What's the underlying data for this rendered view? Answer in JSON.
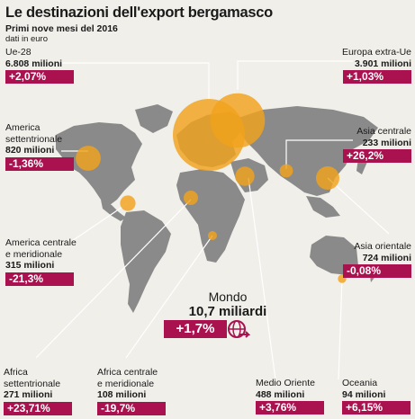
{
  "title": "Le destinazioni dell'export bergamasco",
  "subtitle": "Primi nove mesi del 2016",
  "unit": "dati in euro",
  "colors": {
    "bubble": "#f0a21c",
    "land": "#8a8a8a",
    "badge": "#a9124f",
    "leader": "#ffffff",
    "background": "#f1efe9"
  },
  "icons": {
    "world": "globe-arrow-icon"
  },
  "world": {
    "name": "Mondo",
    "value": "10,7 miliardi",
    "change": "+1,7%"
  },
  "regions": [
    {
      "id": "ue28",
      "name": "Ue-28",
      "value": "6.808 milioni",
      "change": "+2,07%",
      "value_mln": 6808
    },
    {
      "id": "europa-extra-ue",
      "name": "Europa extra-Ue",
      "value": "3.901 milioni",
      "change": "+1,03%",
      "value_mln": 3901
    },
    {
      "id": "america-settentrionale",
      "name": "America settentrionale",
      "name_lines": [
        "America",
        "settentrionale"
      ],
      "value": "820 milioni",
      "change": "-1,36%",
      "value_mln": 820
    },
    {
      "id": "asia-centrale",
      "name": "Asia centrale",
      "value": "233 milioni",
      "change": "+26,2%",
      "value_mln": 233
    },
    {
      "id": "america-centrale-meridionale",
      "name": "America centrale e meridionale",
      "name_lines": [
        "America centrale",
        "e meridionale"
      ],
      "value": "315 milioni",
      "change": "-21,3%",
      "value_mln": 315
    },
    {
      "id": "asia-orientale",
      "name": "Asia orientale",
      "value": "724 milioni",
      "change": "-0,08%",
      "value_mln": 724
    },
    {
      "id": "africa-settentrionale",
      "name": "Africa settentrionale",
      "name_lines": [
        "Africa",
        "settentrionale"
      ],
      "value": "271 milioni",
      "change": "+23,71%",
      "value_mln": 271
    },
    {
      "id": "africa-centrale-meridionale",
      "name": "Africa centrale e meridionale",
      "name_lines": [
        "Africa centrale",
        "e meridionale"
      ],
      "value": "108 milioni",
      "change": "-19,7%",
      "value_mln": 108
    },
    {
      "id": "medio-oriente",
      "name": "Medio Oriente",
      "value": "488 milioni",
      "change": "+3,76%",
      "value_mln": 488
    },
    {
      "id": "oceania",
      "name": "Oceania",
      "value": "94 milioni",
      "change": "+6,15%",
      "value_mln": 94
    }
  ]
}
